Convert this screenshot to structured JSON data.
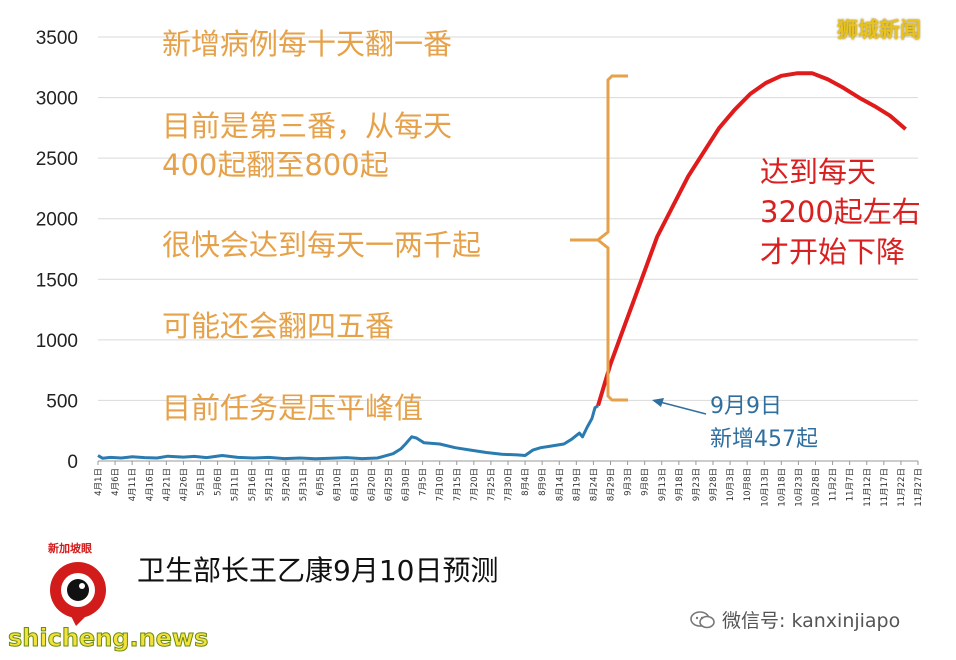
{
  "brand": "狮城新闻",
  "caption": "卫生部长王乙康9月10日预测",
  "logo_text": "新加坡眼",
  "wechat": "微信号: kanxinjiapo",
  "site": "shicheng.news",
  "colors": {
    "actual": "#2a7bb0",
    "projection": "#e01b1b",
    "orange": "#e6a24a",
    "grid": "#d9d9d9"
  },
  "chart_data": {
    "type": "line",
    "title": "",
    "xlabel": "",
    "ylabel": "",
    "ylim": [
      0,
      3500
    ],
    "yticks": [
      0,
      500,
      1000,
      1500,
      2000,
      2500,
      3000,
      3500
    ],
    "grid": true,
    "xtick_labels": [
      "4月1日",
      "4月6日",
      "4月11日",
      "4月16日",
      "4月21日",
      "4月26日",
      "5月1日",
      "5月6日",
      "5月11日",
      "5月16日",
      "5月21日",
      "5月26日",
      "5月31日",
      "6月5日",
      "6月10日",
      "6月15日",
      "6月20日",
      "6月25日",
      "6月30日",
      "7月5日",
      "7月10日",
      "7月15日",
      "7月20日",
      "7月25日",
      "7月30日",
      "8月4日",
      "8月9日",
      "8月14日",
      "8月19日",
      "8月24日",
      "8月29日",
      "9月3日",
      "9月8日",
      "9月13日",
      "9月18日",
      "9月23日",
      "9月28日",
      "10月3日",
      "10月8日",
      "10月13日",
      "10月18日",
      "10月23日",
      "10月28日",
      "11月2日",
      "11月7日",
      "11月12日",
      "11月17日",
      "11月22日",
      "11月27日"
    ],
    "series": [
      {
        "name": "",
        "color": "#2a7bb0",
        "points": [
          [
            0,
            45
          ],
          [
            3,
            22
          ],
          [
            8,
            30
          ],
          [
            15,
            25
          ],
          [
            22,
            35
          ],
          [
            30,
            28
          ],
          [
            38,
            25
          ],
          [
            45,
            40
          ],
          [
            55,
            32
          ],
          [
            62,
            38
          ],
          [
            70,
            28
          ],
          [
            80,
            45
          ],
          [
            90,
            30
          ],
          [
            100,
            25
          ],
          [
            110,
            30
          ],
          [
            120,
            20
          ],
          [
            130,
            25
          ],
          [
            140,
            18
          ],
          [
            150,
            22
          ],
          [
            160,
            28
          ],
          [
            170,
            20
          ],
          [
            180,
            25
          ],
          [
            190,
            60
          ],
          [
            195,
            100
          ],
          [
            198,
            140
          ],
          [
            202,
            200
          ],
          [
            205,
            190
          ],
          [
            210,
            150
          ],
          [
            220,
            140
          ],
          [
            230,
            110
          ],
          [
            240,
            90
          ],
          [
            250,
            70
          ],
          [
            260,
            55
          ],
          [
            270,
            50
          ],
          [
            275,
            45
          ],
          [
            280,
            90
          ],
          [
            285,
            110
          ],
          [
            290,
            120
          ],
          [
            300,
            140
          ],
          [
            305,
            180
          ],
          [
            310,
            230
          ],
          [
            312,
            200
          ],
          [
            315,
            280
          ],
          [
            318,
            350
          ],
          [
            320,
            440
          ],
          [
            322,
            457
          ]
        ]
      },
      {
        "name": "",
        "color": "#e01b1b",
        "points": [
          [
            322,
            457
          ],
          [
            330,
            800
          ],
          [
            340,
            1150
          ],
          [
            350,
            1500
          ],
          [
            360,
            1850
          ],
          [
            370,
            2100
          ],
          [
            380,
            2350
          ],
          [
            390,
            2550
          ],
          [
            400,
            2750
          ],
          [
            410,
            2900
          ],
          [
            420,
            3030
          ],
          [
            430,
            3120
          ],
          [
            440,
            3180
          ],
          [
            450,
            3200
          ],
          [
            460,
            3200
          ],
          [
            470,
            3150
          ],
          [
            480,
            3080
          ],
          [
            490,
            3000
          ],
          [
            500,
            2930
          ],
          [
            510,
            2850
          ],
          [
            520,
            2740
          ]
        ]
      }
    ],
    "annotations": {
      "left": [
        "新增病例每十天翻一番",
        "目前是第三番，从每天",
        "400起翻至800起",
        "很快会达到每天一两千起",
        "可能还会翻四五番",
        "目前任务是压平峰值"
      ],
      "right": [
        "达到每天",
        "3200起左右",
        "才开始下降"
      ],
      "point": [
        "9月9日",
        "新增457起"
      ]
    }
  }
}
